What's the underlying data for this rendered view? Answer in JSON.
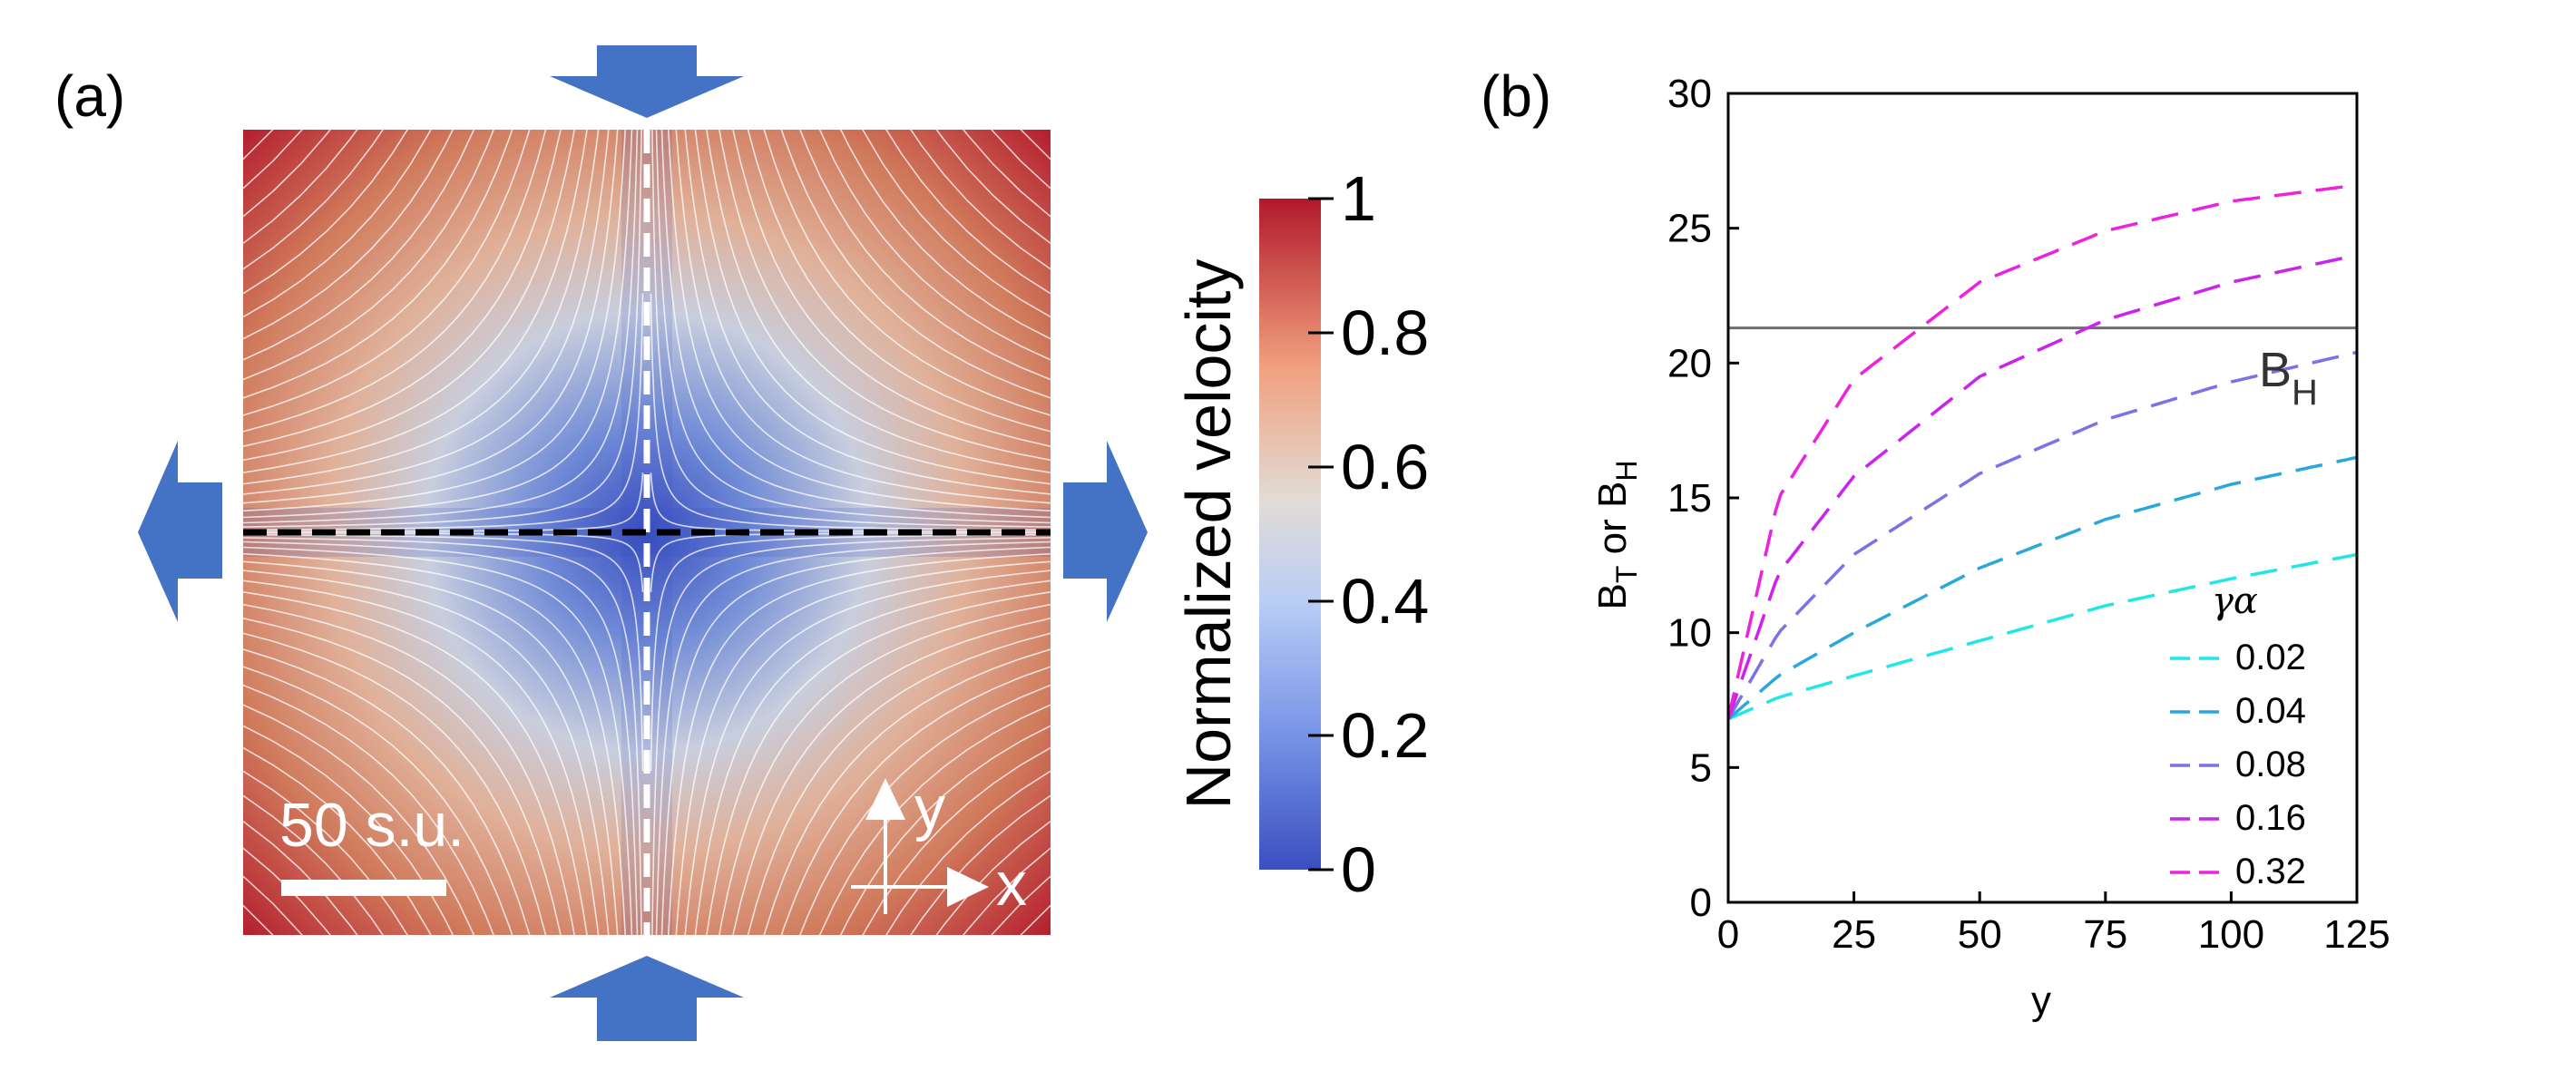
{
  "panel_a": {
    "label": "(a)",
    "scale_bar_label": "50 s.u.",
    "axis_x": "x",
    "axis_y": "y",
    "colorbar": {
      "label": "Normalized velocity",
      "ticks": [
        "0",
        "0.2",
        "0.4",
        "0.6",
        "0.8",
        "1"
      ],
      "low_color": "#3a4fc0",
      "mid_color": "#dcdcdc",
      "high_color": "#b2182b"
    },
    "arrow_color": "#4472c4"
  },
  "panel_b": {
    "label": "(b)",
    "legend_title": "γα",
    "reference_label": "B",
    "reference_label_sub": "H",
    "colors": {
      "reference_line": "#6e6e6e",
      "frame": "#000000"
    }
  },
  "chart_data": {
    "type": "line",
    "title": "",
    "xlabel": "y",
    "ylabel": "B_T or B_H",
    "xlim": [
      0,
      125
    ],
    "ylim": [
      0,
      30
    ],
    "x_ticks": [
      "0",
      "25",
      "50",
      "75",
      "100",
      "125"
    ],
    "y_ticks": [
      "0",
      "5",
      "10",
      "15",
      "20",
      "25",
      "30"
    ],
    "reference_line": {
      "name": "B_H",
      "y": 21.3
    },
    "series": [
      {
        "name": "0.02",
        "color": "#22e6e6",
        "x": [
          0,
          10,
          25,
          50,
          75,
          100,
          125
        ],
        "values": [
          6.8,
          7.6,
          8.4,
          9.7,
          11.0,
          12.0,
          12.9
        ]
      },
      {
        "name": "0.04",
        "color": "#2aa8dc",
        "x": [
          0,
          10,
          25,
          50,
          75,
          100,
          125
        ],
        "values": [
          6.8,
          8.4,
          10.0,
          12.4,
          14.2,
          15.5,
          16.5
        ]
      },
      {
        "name": "0.08",
        "color": "#7a72e6",
        "x": [
          0,
          10,
          25,
          50,
          75,
          100,
          125
        ],
        "values": [
          6.8,
          10.0,
          12.9,
          15.9,
          17.9,
          19.3,
          20.4
        ]
      },
      {
        "name": "0.16",
        "color": "#cc22ee",
        "x": [
          0,
          10,
          25,
          50,
          75,
          100,
          125
        ],
        "values": [
          6.8,
          12.2,
          15.8,
          19.5,
          21.6,
          23.0,
          24.0
        ]
      },
      {
        "name": "0.32",
        "color": "#ee22dd",
        "x": [
          0,
          10,
          25,
          50,
          75,
          100,
          125
        ],
        "values": [
          6.8,
          15.0,
          19.4,
          23.0,
          24.9,
          26.0,
          26.6
        ]
      }
    ]
  }
}
